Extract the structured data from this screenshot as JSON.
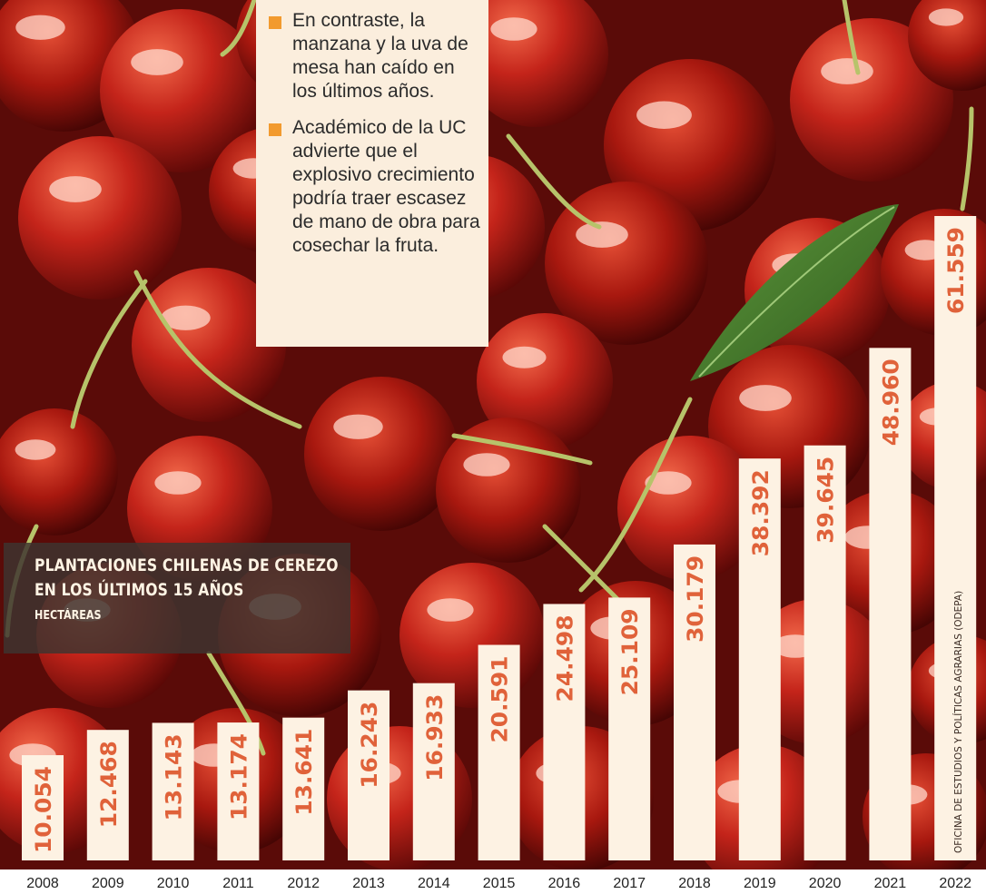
{
  "bullets": [
    "En contraste, la manzana y la uva de mesa han caído en los últimos años.",
    "Académico de la UC advierte que el explosivo crecimiento podría traer escasez de mano de obra para cosechar la fruta."
  ],
  "source": "OFICINA DE ESTUDIOS Y POLÍTICAS AGRARIAS (ODEPA)",
  "colors": {
    "bar_fill": "#fdf2e3",
    "label_color": "#e0623a",
    "bullet_square": "#f29a2e",
    "title_box": "#3e3430"
  },
  "chart_data": {
    "type": "bar",
    "title": "PLANTACIONES CHILENAS DE CEREZO EN LOS ÚLTIMOS 15 AÑOS",
    "title_lines": [
      "PLANTACIONES CHILENAS DE CEREZO",
      "EN LOS ÚLTIMOS 15 AÑOS"
    ],
    "subtitle": "HECTÁREAS",
    "xlabel": "",
    "ylabel": "",
    "grid": false,
    "ylim": [
      0,
      62000
    ],
    "categories": [
      "2008",
      "2009",
      "2010",
      "2011",
      "2012",
      "2013",
      "2014",
      "2015",
      "2016",
      "2017",
      "2018",
      "2019",
      "2020",
      "2021",
      "2022"
    ],
    "values": [
      10054,
      12468,
      13143,
      13174,
      13641,
      16243,
      16933,
      20591,
      24498,
      25109,
      30179,
      38392,
      39645,
      48960,
      61559
    ],
    "value_labels": [
      "10.054",
      "12.468",
      "13.143",
      "13.174",
      "13.641",
      "16.243",
      "16.933",
      "20.591",
      "24.498",
      "25.109",
      "30.179",
      "38.392",
      "39.645",
      "48.960",
      "61.559"
    ]
  }
}
